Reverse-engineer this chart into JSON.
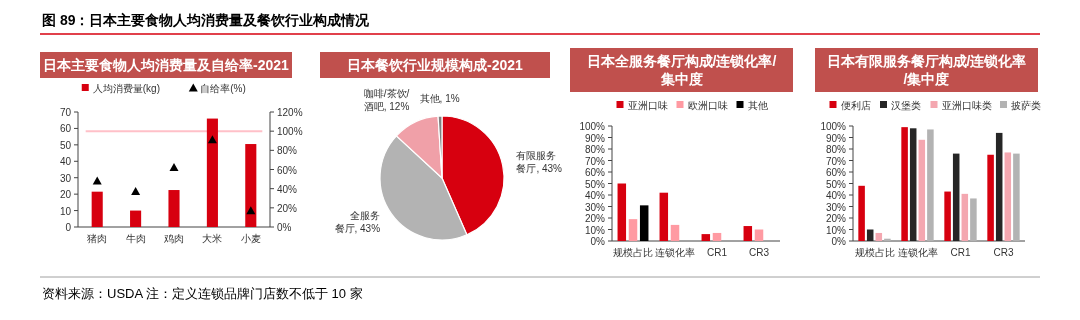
{
  "chart_data": [
    {
      "type": "other",
      "title": "图 89：日本主要食物人均消费量及餐饮行业构成情况",
      "annotations": [
        "资料来源：USDA 注：定义连锁品牌门店数不低于 10 家"
      ]
    },
    {
      "type": "bar",
      "title": "日本主要食物人均消费量及自给率-2021",
      "categories": [
        "猪肉",
        "牛肉",
        "鸡肉",
        "大米",
        "小麦"
      ],
      "series": [
        {
          "name": "人均消费量(kg)",
          "color": "#d7000f",
          "values": [
            21.5,
            10,
            22.5,
            66,
            50.5
          ]
        },
        {
          "name": "自给率(%)",
          "type": "scatter",
          "axis": "y2",
          "marker": "triangle",
          "color": "#000000",
          "values": [
            48,
            37,
            62,
            91,
            17
          ]
        }
      ],
      "ylim": [
        0,
        70
      ],
      "yticks": [
        0,
        10,
        20,
        30,
        40,
        50,
        60,
        70
      ],
      "y2lim": [
        0,
        120
      ],
      "y2ticks": [
        {
          "value": 0,
          "label": "0%"
        },
        {
          "value": 20,
          "label": "20%"
        },
        {
          "value": 40,
          "label": "40%"
        },
        {
          "value": 60,
          "label": "60%"
        },
        {
          "value": 80,
          "label": "80%"
        },
        {
          "value": 100,
          "label": "100%"
        },
        {
          "value": 120,
          "label": "120%"
        }
      ],
      "ref_lines": [
        {
          "axis": "y2",
          "value": 100,
          "color": "#ffc0c8"
        }
      ],
      "legend": "top",
      "grid": false
    },
    {
      "type": "pie",
      "title": "日本餐饮行业规模构成-2021",
      "categories": [
        "有限服务餐厅",
        "全服务餐厅",
        "咖啡/茶饮/酒吧",
        "其他"
      ],
      "values": [
        43,
        43,
        12,
        1
      ],
      "colors": [
        "#d7000f",
        "#b3b3b3",
        "#f0a0a8",
        "#7f7f7f"
      ],
      "value_labels": [
        "43%",
        "43%",
        "12%",
        "1%"
      ]
    },
    {
      "type": "bar",
      "title": "日本全服务餐厅构成/连锁化率/集中度",
      "categories": [
        "规模占比",
        "连锁化率",
        "CR1",
        "CR3"
      ],
      "series": [
        {
          "name": "亚洲口味",
          "color": "#d7000f",
          "values": [
            50,
            42,
            6,
            13
          ]
        },
        {
          "name": "欧洲口味",
          "color": "#ff9aa2",
          "values": [
            19,
            14,
            7,
            10
          ]
        },
        {
          "name": "其他",
          "color": "#000000",
          "values": [
            31,
            null,
            null,
            null
          ]
        }
      ],
      "ylim": [
        0,
        100
      ],
      "yticks": [
        {
          "value": 0,
          "label": "0%"
        },
        {
          "value": 10,
          "label": "10%"
        },
        {
          "value": 20,
          "label": "20%"
        },
        {
          "value": 30,
          "label": "30%"
        },
        {
          "value": 40,
          "label": "40%"
        },
        {
          "value": 50,
          "label": "50%"
        },
        {
          "value": 60,
          "label": "60%"
        },
        {
          "value": 70,
          "label": "70%"
        },
        {
          "value": 80,
          "label": "80%"
        },
        {
          "value": 90,
          "label": "90%"
        },
        {
          "value": 100,
          "label": "100%"
        }
      ],
      "legend": "top",
      "grid": false
    },
    {
      "type": "bar",
      "title": "日本有限服务餐厅构成/连锁化率/集中度",
      "categories": [
        "规模占比",
        "连锁化率",
        "CR1",
        "CR3"
      ],
      "series": [
        {
          "name": "便利店",
          "color": "#d7000f",
          "values": [
            48,
            99,
            43,
            75
          ]
        },
        {
          "name": "汉堡类",
          "color": "#262626",
          "values": [
            10,
            98,
            76,
            94
          ]
        },
        {
          "name": "亚洲口味类",
          "color": "#f4a7b0",
          "values": [
            7,
            88,
            41,
            77
          ]
        },
        {
          "name": "披萨类",
          "color": "#b3b3b3",
          "values": [
            2,
            97,
            37,
            76
          ]
        }
      ],
      "ylim": [
        0,
        100
      ],
      "yticks": [
        {
          "value": 0,
          "label": "0%"
        },
        {
          "value": 10,
          "label": "10%"
        },
        {
          "value": 20,
          "label": "20%"
        },
        {
          "value": 30,
          "label": "30%"
        },
        {
          "value": 40,
          "label": "40%"
        },
        {
          "value": 50,
          "label": "50%"
        },
        {
          "value": 60,
          "label": "60%"
        },
        {
          "value": 70,
          "label": "70%"
        },
        {
          "value": 80,
          "label": "80%"
        },
        {
          "value": 90,
          "label": "90%"
        },
        {
          "value": 100,
          "label": "100%"
        }
      ],
      "legend": "top",
      "grid": false
    }
  ]
}
